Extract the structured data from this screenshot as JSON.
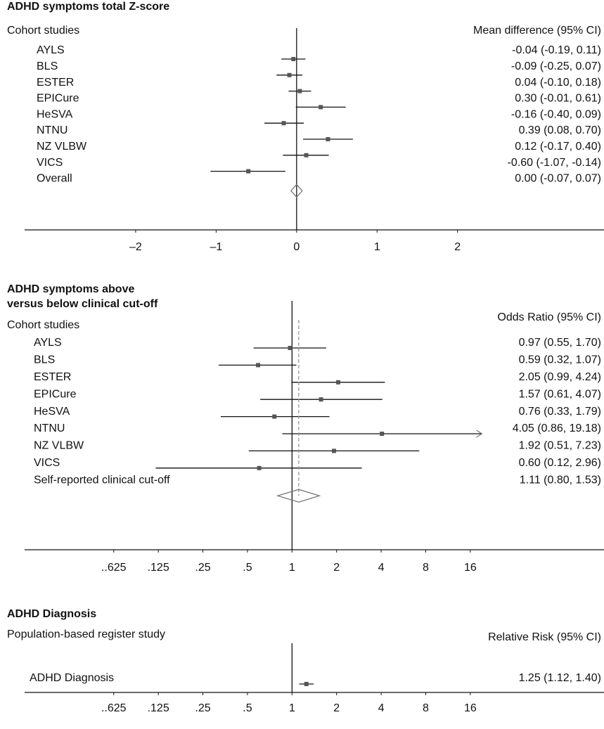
{
  "chart_data": [
    {
      "type": "forest",
      "title": [
        "ADHD symptoms total Z-score"
      ],
      "subtitle": "Cohort studies",
      "effect_label": "Mean difference (95% CI)",
      "categories": [
        "AYLS",
        "BLS",
        "ESTER",
        "EPICure",
        "HeSVA",
        "NTNU",
        "NZ VLBW",
        "VICS"
      ],
      "values": [
        -0.04,
        -0.09,
        0.04,
        0.3,
        -0.16,
        0.39,
        0.12,
        -0.6
      ],
      "lower": [
        -0.19,
        -0.25,
        -0.1,
        -0.01,
        -0.4,
        0.08,
        -0.17,
        -1.07
      ],
      "upper": [
        0.11,
        0.07,
        0.18,
        0.61,
        0.09,
        0.7,
        0.4,
        -0.14
      ],
      "value_labels": [
        "-0.04 (-0.19, 0.11)",
        "-0.09 (-0.25, 0.07)",
        "0.04 (-0.10, 0.18)",
        "0.30 (-0.01, 0.61)",
        "-0.16 (-0.40, 0.09)",
        "0.39 (0.08, 0.70)",
        "0.12 (-0.17, 0.40)",
        "-0.60 (-1.07, -0.14)"
      ],
      "overall": {
        "label": "Overall",
        "value": 0.0,
        "lower": -0.07,
        "upper": 0.07,
        "value_label": "0.00 (-0.07, 0.07)"
      },
      "xscale": "linear",
      "xlim": [
        -3.38,
        3.82
      ],
      "xticks": [
        {
          "value": -2,
          "label": "–2"
        },
        {
          "value": -1,
          "label": "–1"
        },
        0,
        1,
        2
      ],
      "reference_line": 0,
      "overall_line": false
    },
    {
      "type": "forest",
      "title": [
        "ADHD symptoms above",
        "versus below clinical cut-off"
      ],
      "subtitle": "Cohort studies",
      "effect_label": "Odds Ratio (95% CI)",
      "categories": [
        "AYLS",
        "BLS",
        "ESTER",
        "EPICure",
        "HeSVA",
        "NTNU",
        "NZ VLBW",
        "VICS"
      ],
      "values": [
        0.97,
        0.59,
        2.05,
        1.57,
        0.76,
        4.05,
        1.92,
        0.6
      ],
      "lower": [
        0.55,
        0.32,
        0.99,
        0.61,
        0.33,
        0.86,
        0.51,
        0.12
      ],
      "upper": [
        1.7,
        1.07,
        4.24,
        4.07,
        1.79,
        19.18,
        7.23,
        2.96
      ],
      "value_labels": [
        "0.97 (0.55, 1.70)",
        "0.59 (0.32, 1.07)",
        "2.05 (0.99, 4.24)",
        "1.57 (0.61, 4.07)",
        "0.76 (0.33, 1.79)",
        "4.05 (0.86, 19.18)",
        "1.92 (0.51, 7.23)",
        "0.60 (0.12, 2.96)"
      ],
      "overall": {
        "label": "Self-reported clinical cut-off",
        "value": 1.11,
        "lower": 0.8,
        "upper": 1.53,
        "value_label": "1.11 (0.80, 1.53)"
      },
      "xscale": "log",
      "xlim": [
        0.015625,
        128
      ],
      "xticks": [
        {
          "value": 0.0625,
          "label": "..625"
        },
        {
          "value": 0.125,
          "label": ".125"
        },
        {
          "value": 0.25,
          "label": ".25"
        },
        {
          "value": 0.5,
          "label": ".5"
        },
        1,
        2,
        4,
        8,
        16
      ],
      "reference_line": 1,
      "overall_line": true
    },
    {
      "type": "forest",
      "title": [
        "ADHD Diagnosis"
      ],
      "subtitle": "Population-based register study",
      "effect_label": "Relative Risk (95% CI)",
      "categories": [
        "ADHD Diagnosis"
      ],
      "values": [
        1.25
      ],
      "lower": [
        1.12
      ],
      "upper": [
        1.4
      ],
      "value_labels": [
        "1.25 (1.12, 1.40)"
      ],
      "xscale": "log",
      "xlim": [
        0.015625,
        128
      ],
      "xticks": [
        {
          "value": 0.0625,
          "label": "..625"
        },
        {
          "value": 0.125,
          "label": ".125"
        },
        {
          "value": 0.25,
          "label": ".25"
        },
        {
          "value": 0.5,
          "label": ".5"
        },
        1,
        2,
        4,
        8,
        16
      ],
      "reference_line": 1,
      "overall_line": false
    }
  ]
}
